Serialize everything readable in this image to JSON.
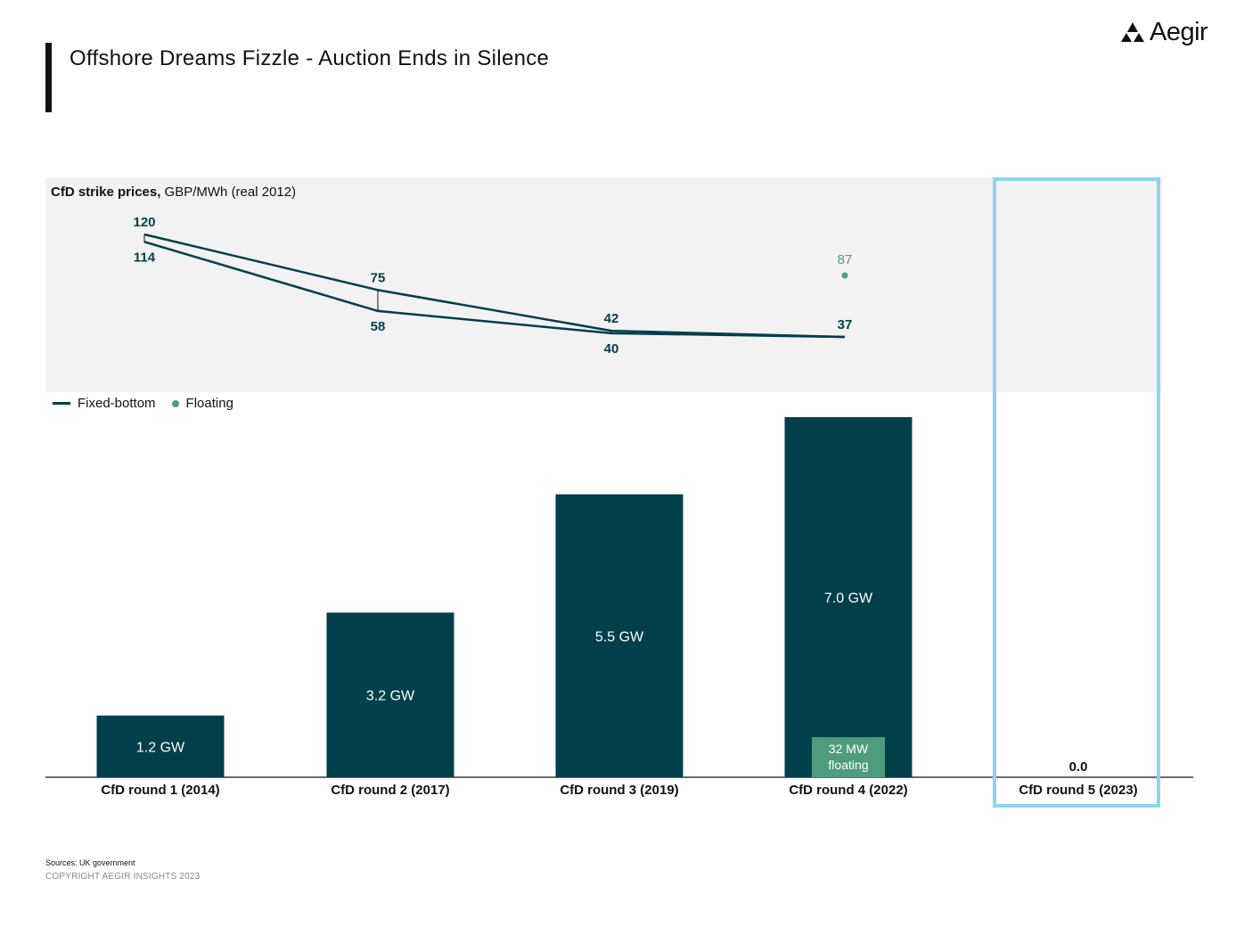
{
  "header": {
    "title": "Offshore Dreams Fizzle - Auction Ends in Silence",
    "brand": "Aegir"
  },
  "price_panel": {
    "title_bold": "CfD strike prices,",
    "title_rest": " GBP/MWh (real 2012)"
  },
  "legend": {
    "fixed": "Fixed-bottom",
    "floating": "Floating"
  },
  "footer": {
    "sources": "Sources: UK government",
    "copyright": "COPYRIGHT AEGIR INSIGHTS 2023"
  },
  "colors": {
    "bar": "#013f4a",
    "floating": "#4e9c7e",
    "highlight": "#8fd3f4",
    "panel": "#f2f2f2"
  },
  "chart_data": [
    {
      "type": "bar",
      "categories": [
        "CfD round 1 (2014)",
        "CfD round 2 (2017)",
        "CfD round 3 (2019)",
        "CfD round 4 (2022)",
        "CfD round 5 (2023)"
      ],
      "values": [
        1.2,
        3.2,
        5.5,
        7.0,
        0.0
      ],
      "unit": "GW",
      "data_labels": [
        "1.2 GW",
        "3.2 GW",
        "5.5 GW",
        "7.0 GW",
        "0.0"
      ],
      "ylim": [
        0,
        7.0
      ],
      "floating_segment": {
        "category": "CfD round 4 (2022)",
        "label_line1": "32 MW",
        "label_line2": "floating"
      },
      "highlighted_category": "CfD round 5 (2023)"
    },
    {
      "type": "line",
      "title": "CfD strike prices, GBP/MWh (real 2012)",
      "categories": [
        "CfD round 1 (2014)",
        "CfD round 2 (2017)",
        "CfD round 3 (2019)",
        "CfD round 4 (2022)"
      ],
      "series": [
        {
          "name": "Fixed-bottom",
          "high": [
            120,
            75,
            42,
            37
          ],
          "low": [
            114,
            58,
            40,
            37
          ],
          "labels_high": [
            "120",
            "75",
            "42",
            "37"
          ],
          "labels_low": [
            "114",
            "58",
            "40",
            ""
          ]
        },
        {
          "name": "Floating",
          "points": [
            {
              "category": "CfD round 4 (2022)",
              "value": 87,
              "label": "87"
            }
          ]
        }
      ],
      "ylim": [
        0,
        130
      ],
      "legend_position": "bottom-left"
    }
  ]
}
